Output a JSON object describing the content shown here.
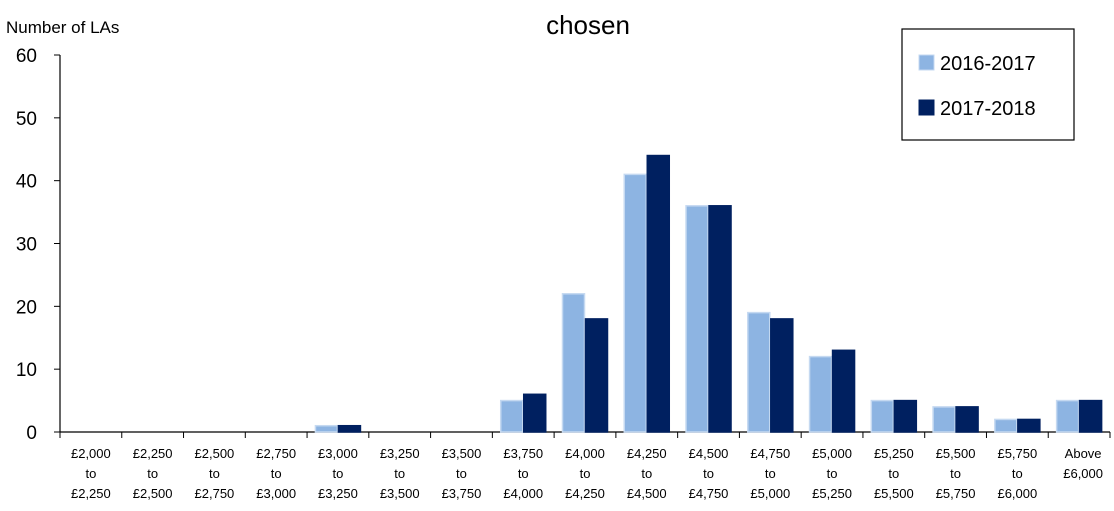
{
  "chart_data": {
    "type": "bar",
    "title": "chosen",
    "ylabel": "Number of LAs",
    "xlabel": "",
    "ylim": [
      0,
      60
    ],
    "yticks": [
      0,
      10,
      20,
      30,
      40,
      50,
      60
    ],
    "categories": [
      [
        "£2,000",
        "to",
        "£2,250"
      ],
      [
        "£2,250",
        "to",
        "£2,500"
      ],
      [
        "£2,500",
        "to",
        "£2,750"
      ],
      [
        "£2,750",
        "to",
        "£3,000"
      ],
      [
        "£3,000",
        "to",
        "£3,250"
      ],
      [
        "£3,250",
        "to",
        "£3,500"
      ],
      [
        "£3,500",
        "to",
        "£3,750"
      ],
      [
        "£3,750",
        "to",
        "£4,000"
      ],
      [
        "£4,000",
        "to",
        "£4,250"
      ],
      [
        "£4,250",
        "to",
        "£4,500"
      ],
      [
        "£4,500",
        "to",
        "£4,750"
      ],
      [
        "£4,750",
        "to",
        "£5,000"
      ],
      [
        "£5,000",
        "to",
        "£5,250"
      ],
      [
        "£5,250",
        "to",
        "£5,500"
      ],
      [
        "£5,500",
        "to",
        "£5,750"
      ],
      [
        "£5,750",
        "to",
        "£6,000"
      ],
      [
        "Above",
        "£6,000"
      ]
    ],
    "series": [
      {
        "name": "2016-2017",
        "color": "#8db4e2",
        "edge": "#c5d9f1",
        "values": [
          0,
          0,
          0,
          0,
          1,
          0,
          0,
          5,
          22,
          41,
          36,
          19,
          12,
          5,
          4,
          2,
          5
        ]
      },
      {
        "name": "2017-2018",
        "color": "#002060",
        "edge": "#002060",
        "values": [
          0,
          0,
          0,
          0,
          1,
          0,
          0,
          6,
          18,
          44,
          36,
          18,
          13,
          5,
          4,
          2,
          5
        ]
      }
    ],
    "legend_position": "top-right",
    "grid": false
  }
}
